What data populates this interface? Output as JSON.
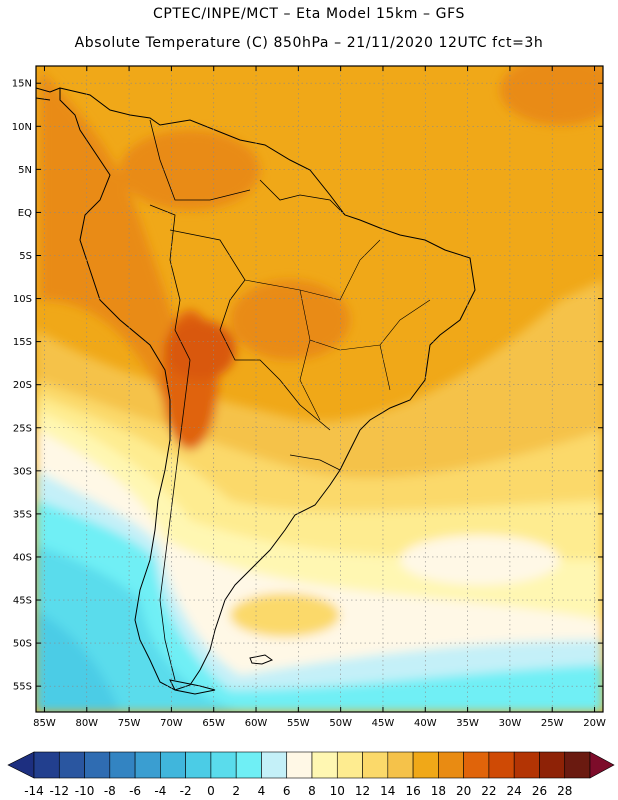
{
  "header": {
    "line1": "CPTEC/INPE/MCT –   Eta Model 15km – GFS",
    "line2": "Absolute Temperature (C) 850hPa – 21/11/2020 12UTC fct=3h"
  },
  "map": {
    "lon_labels": [
      "85W",
      "80W",
      "75W",
      "70W",
      "65W",
      "60W",
      "55W",
      "50W",
      "45W",
      "40W",
      "35W",
      "30W",
      "25W",
      "20W"
    ],
    "lat_labels": [
      "15N",
      "10N",
      "5N",
      "EQ",
      "5S",
      "10S",
      "15S",
      "20S",
      "25S",
      "30S",
      "35S",
      "40S",
      "45S",
      "50S",
      "55S"
    ],
    "lon_range": [
      -86,
      -19
    ],
    "lat_range": [
      17,
      -58
    ],
    "grid_step_deg": 5
  },
  "colorbar": {
    "labels": [
      "-14",
      "-12",
      "-10",
      "-8",
      "-6",
      "-4",
      "-2",
      "0",
      "2",
      "4",
      "6",
      "8",
      "10",
      "12",
      "14",
      "16",
      "18",
      "20",
      "22",
      "24",
      "26",
      "28"
    ],
    "colors": [
      "#223f8e",
      "#2a56a0",
      "#2f6cb2",
      "#3384c2",
      "#3a9ed1",
      "#40b6dc",
      "#4bcce6",
      "#5adcec",
      "#6feff5",
      "#c4f0f8",
      "#fff8e6",
      "#fff7b2",
      "#feec90",
      "#fbd96a",
      "#f5c24a",
      "#f0a818",
      "#e98b12",
      "#e0640a",
      "#cf4a05",
      "#b33404",
      "#8e2206",
      "#6a1a10"
    ],
    "under_color": "#1d2f80",
    "over_color": "#7d0c2a"
  }
}
